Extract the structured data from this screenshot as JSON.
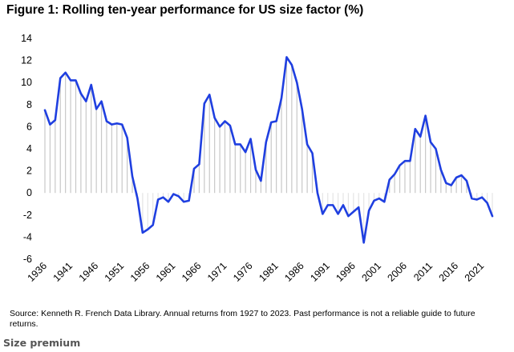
{
  "figure": {
    "title": "Figure 1: Rolling ten-year performance for US size factor (%)",
    "source_note": "Source: Kenneth R. French Data Library. Annual returns from 1927 to 2023. Past performance is not a reliable guide to future returns.",
    "caption": "Size premium"
  },
  "colors": {
    "line": "#1f3fe0",
    "fill_positive": "#c8c8c8",
    "fill_negative": "#e4e4e4",
    "text": "#000000"
  },
  "chart_data": {
    "type": "line",
    "title": "Figure 1: Rolling ten-year performance for US size factor (%)",
    "xlabel": "",
    "ylabel": "",
    "ylim": [
      -6,
      14
    ],
    "xlim": [
      1936,
      2023
    ],
    "y_ticks": [
      "14",
      "12",
      "10",
      "8",
      "6",
      "4",
      "2",
      "0",
      "-2",
      "-4",
      "-6"
    ],
    "x_ticks": [
      "1936",
      "1941",
      "1946",
      "1951",
      "1956",
      "1961",
      "1966",
      "1971",
      "1976",
      "1981",
      "1986",
      "1991",
      "1996",
      "2001",
      "2006",
      "2011",
      "2016",
      "2021"
    ],
    "grid": false,
    "legend": "none",
    "series": [
      {
        "x": [
          1936,
          1937,
          1938,
          1939,
          1940,
          1941,
          1942,
          1943,
          1944,
          1945,
          1946,
          1947,
          1948,
          1949,
          1950,
          1951,
          1952,
          1953,
          1954,
          1955,
          1956,
          1957,
          1958,
          1959,
          1960,
          1961,
          1962,
          1963,
          1964,
          1965,
          1966,
          1967,
          1968,
          1969,
          1970,
          1971,
          1972,
          1973,
          1974,
          1975,
          1976,
          1977,
          1978,
          1979,
          1980,
          1981,
          1982,
          1983,
          1984,
          1985,
          1986,
          1987,
          1988,
          1989,
          1990,
          1991,
          1992,
          1993,
          1994,
          1995,
          1996,
          1997,
          1998,
          1999,
          2000,
          2001,
          2002,
          2003,
          2004,
          2005,
          2006,
          2007,
          2008,
          2009,
          2010,
          2011,
          2012,
          2013,
          2014,
          2015,
          2016,
          2017,
          2018,
          2019,
          2020,
          2021,
          2022,
          2023
        ],
        "values": [
          7.5,
          6.2,
          6.6,
          10.4,
          10.9,
          10.2,
          10.2,
          9.0,
          8.3,
          9.8,
          7.6,
          8.3,
          6.5,
          6.2,
          6.3,
          6.2,
          5.0,
          1.5,
          -0.5,
          -3.6,
          -3.3,
          -2.9,
          -0.6,
          -0.4,
          -0.8,
          -0.1,
          -0.3,
          -0.8,
          -0.7,
          2.2,
          2.6,
          8.1,
          8.9,
          6.8,
          6.0,
          6.5,
          6.1,
          4.4,
          4.4,
          3.7,
          4.9,
          2.1,
          1.1,
          4.6,
          6.4,
          6.5,
          8.6,
          12.3,
          11.6,
          10.0,
          7.6,
          4.4,
          3.6,
          0.0,
          -1.9,
          -1.1,
          -1.1,
          -1.9,
          -1.1,
          -2.1,
          -1.7,
          -1.3,
          -4.5,
          -1.6,
          -0.7,
          -0.5,
          -0.8,
          1.2,
          1.7,
          2.5,
          2.9,
          2.9,
          5.8,
          5.1,
          7.0,
          4.6,
          4.0,
          2.1,
          0.9,
          0.7,
          1.4,
          1.6,
          1.1,
          -0.5,
          -0.6,
          -0.4,
          -0.9,
          -2.1
        ]
      }
    ]
  }
}
